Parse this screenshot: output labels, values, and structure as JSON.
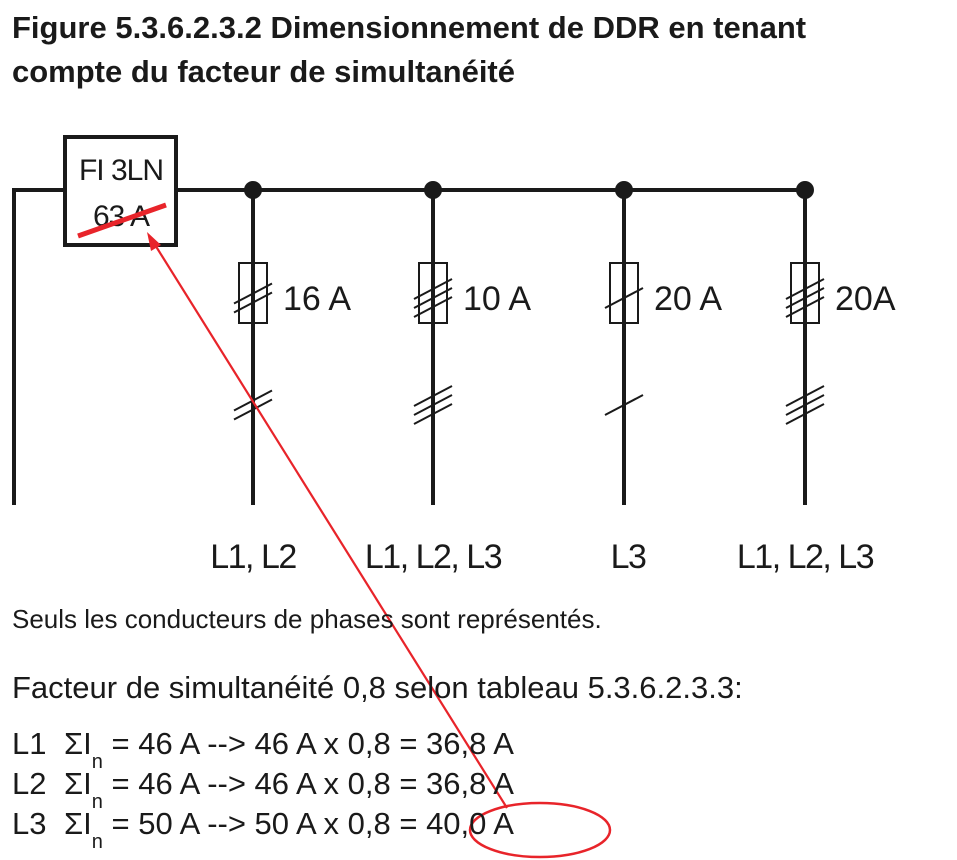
{
  "figure": {
    "title_line1": "Figure 5.3.6.2.3.2  Dimensionnement de DDR en tenant",
    "title_line2": "compte du facteur de simultanéité"
  },
  "rcd": {
    "label": "FI 3LN",
    "rating": "63 A",
    "strike_color": "#e8242a"
  },
  "branches": [
    {
      "fuse": "16 A",
      "phases": "L1, L2",
      "conductors": 2
    },
    {
      "fuse": "10 A",
      "phases": "L1, L2, L3",
      "conductors": 3
    },
    {
      "fuse": "20 A",
      "phases": "L3",
      "conductors": 1
    },
    {
      "fuse": "20A",
      "phases": "L1, L2, L3",
      "conductors": 3
    }
  ],
  "note": "Seuls les conducteurs de phases sont représentés.",
  "factor_line": "Facteur de simultanéité 0,8 selon tableau 5.3.6.2.3.3:",
  "calculations": [
    {
      "phase": "L1",
      "sigma": "ΣI",
      "sub": "n",
      "expr": " = 46 A --> 46 A x 0,8 = 36,8 A"
    },
    {
      "phase": "L2",
      "sigma": "ΣI",
      "sub": "n",
      "expr": " = 46 A --> 46 A x 0,8 = 36,8 A"
    },
    {
      "phase": "L3",
      "sigma": "ΣI",
      "sub": "n",
      "expr": " = 50 A --> 50 A x 0,8 = ",
      "highlight": "40,0 A"
    }
  ],
  "colors": {
    "line": "#1a1a1a",
    "annotation": "#e8242a"
  }
}
